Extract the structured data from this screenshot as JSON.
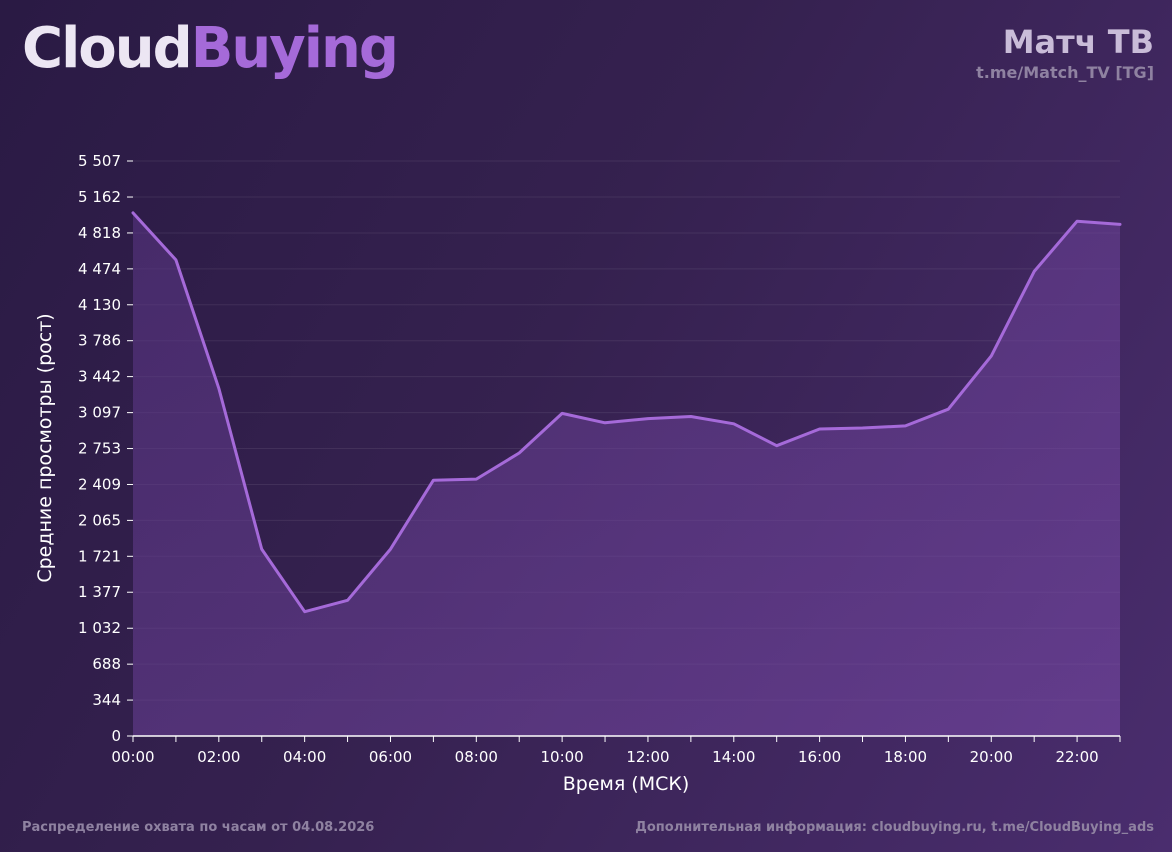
{
  "brand": {
    "part1": "Cloud",
    "part2": "Buying"
  },
  "channel": {
    "name": "Матч ТВ",
    "handle": "t.me/Match_TV [TG]"
  },
  "footer": {
    "left": "Распределение охвата по часам от 04.08.2026",
    "right": "Дополнительная информация: cloudbuying.ru, t.me/CloudBuying_ads"
  },
  "colors": {
    "line": "#a56ad9",
    "fill": "#6a3f9a",
    "accent": "#a56ad9"
  },
  "chart_data": {
    "type": "area",
    "xlabel": "Время (МСК)",
    "ylabel": "Средние просмотры (рост)",
    "ylim": [
      0,
      5507
    ],
    "y_ticks": [
      0,
      344,
      688,
      1032,
      1377,
      1721,
      2065,
      2409,
      2753,
      3097,
      3442,
      3786,
      4130,
      4474,
      4818,
      5162,
      5507
    ],
    "y_tick_labels": [
      "0",
      "344",
      "688",
      "1 032",
      "1 377",
      "1 721",
      "2 065",
      "2 409",
      "2 753",
      "3 097",
      "3 442",
      "3 786",
      "4 130",
      "4 474",
      "4 818",
      "5 162",
      "5 507"
    ],
    "x_tick_labels": [
      "00:00",
      "02:00",
      "04:00",
      "06:00",
      "08:00",
      "10:00",
      "12:00",
      "14:00",
      "16:00",
      "18:00",
      "20:00",
      "22:00"
    ],
    "x_hours": [
      0,
      1,
      2,
      3,
      4,
      5,
      6,
      7,
      8,
      9,
      10,
      11,
      12,
      13,
      14,
      15,
      16,
      17,
      18,
      19,
      20,
      21,
      22,
      23
    ],
    "values": [
      5010,
      4560,
      3330,
      1790,
      1190,
      1300,
      1790,
      2450,
      2460,
      2710,
      3090,
      3000,
      3040,
      3060,
      2990,
      2780,
      2940,
      2950,
      2970,
      3130,
      3640,
      4450,
      4930,
      4900
    ],
    "grid": true,
    "legend": "none"
  }
}
